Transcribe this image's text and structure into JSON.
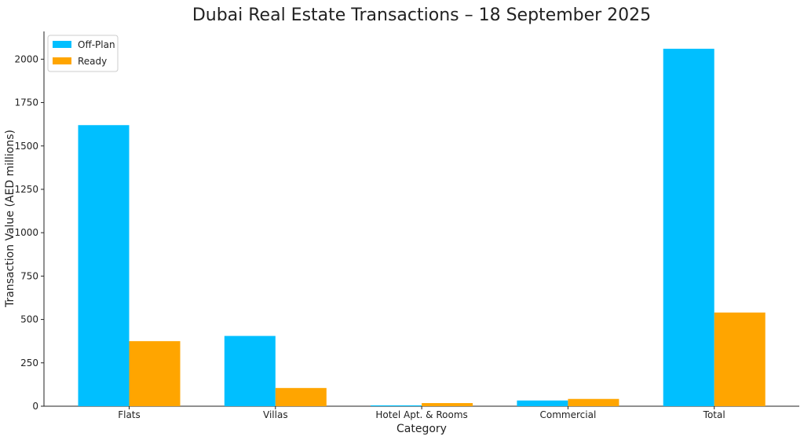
{
  "chart_data": {
    "type": "bar",
    "title": "Dubai Real Estate Transactions – 18 September 2025",
    "xlabel": "Category",
    "ylabel": "Transaction Value (AED millions)",
    "categories": [
      "Flats",
      "Villas",
      "Hotel Apt. & Rooms",
      "Commercial",
      "Total"
    ],
    "series": [
      {
        "name": "Off-Plan",
        "color": "#00bfff",
        "values": [
          1620,
          405,
          5,
          33,
          2060
        ]
      },
      {
        "name": "Ready",
        "color": "#ffa500",
        "values": [
          375,
          105,
          18,
          42,
          540
        ]
      }
    ],
    "ylim": [
      0,
      2160
    ],
    "yticks": [
      0,
      250,
      500,
      750,
      1000,
      1250,
      1500,
      1750,
      2000
    ],
    "grid": false,
    "legend_position": "top-left"
  }
}
